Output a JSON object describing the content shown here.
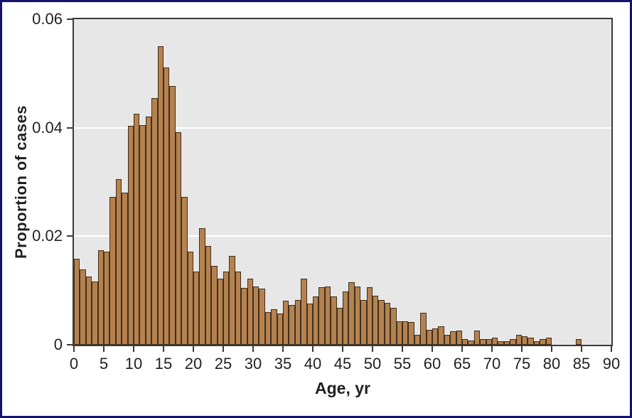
{
  "figure": {
    "page_border_color": "#14126b",
    "page_background": "#ffffff"
  },
  "chart_data": {
    "type": "bar",
    "subtype": "histogram",
    "title": "",
    "xlabel": "Age, yr",
    "ylabel": "Proportion of cases",
    "xlim": [
      0,
      90
    ],
    "ylim": [
      0,
      0.06
    ],
    "bin_width_years": 1,
    "x_ticks": [
      0,
      5,
      10,
      15,
      20,
      25,
      30,
      35,
      40,
      45,
      50,
      55,
      60,
      65,
      70,
      75,
      80,
      85,
      90
    ],
    "y_ticks": {
      "values": [
        0,
        0.02,
        0.04,
        0.06
      ],
      "labels": [
        "0",
        "0.02",
        "0.04",
        "0.06"
      ]
    },
    "grid": {
      "horizontal": true,
      "values": [
        0.02,
        0.04
      ],
      "color": "#ffffff",
      "legend_position": "none"
    },
    "x_bin_start": [
      0,
      1,
      2,
      3,
      4,
      5,
      6,
      7,
      8,
      9,
      10,
      11,
      12,
      13,
      14,
      15,
      16,
      17,
      18,
      19,
      20,
      21,
      22,
      23,
      24,
      25,
      26,
      27,
      28,
      29,
      30,
      31,
      32,
      33,
      34,
      35,
      36,
      37,
      38,
      39,
      40,
      41,
      42,
      43,
      44,
      45,
      46,
      47,
      48,
      49,
      50,
      51,
      52,
      53,
      54,
      55,
      56,
      57,
      58,
      59,
      60,
      61,
      62,
      63,
      64,
      65,
      66,
      67,
      68,
      69,
      70,
      71,
      72,
      73,
      74,
      75,
      76,
      77,
      78,
      79,
      80,
      81,
      82,
      83,
      84,
      85,
      86,
      87,
      88,
      89
    ],
    "values": [
      0.0158,
      0.0139,
      0.0126,
      0.0116,
      0.0174,
      0.0171,
      0.0272,
      0.0305,
      0.028,
      0.0404,
      0.0426,
      0.0405,
      0.0421,
      0.0455,
      0.055,
      0.0511,
      0.0477,
      0.0392,
      0.0273,
      0.0172,
      0.0135,
      0.0215,
      0.0182,
      0.0145,
      0.0122,
      0.0135,
      0.0164,
      0.0135,
      0.0105,
      0.0122,
      0.0107,
      0.0104,
      0.006,
      0.0066,
      0.0058,
      0.0081,
      0.0073,
      0.0082,
      0.0122,
      0.0076,
      0.0089,
      0.0106,
      0.0108,
      0.0089,
      0.0068,
      0.0098,
      0.0115,
      0.0108,
      0.0082,
      0.0106,
      0.009,
      0.0082,
      0.0077,
      0.0068,
      0.0043,
      0.0043,
      0.0042,
      0.0019,
      0.0059,
      0.0027,
      0.003,
      0.0034,
      0.0018,
      0.0025,
      0.0026,
      0.0011,
      0.0008,
      0.0026,
      0.0011,
      0.0011,
      0.0013,
      0.0006,
      0.0007,
      0.001,
      0.0019,
      0.0016,
      0.0013,
      0.0007,
      0.0011,
      0.0013,
      0,
      0,
      0,
      0,
      0.0011,
      0,
      0,
      0,
      0,
      0
    ],
    "colors": {
      "bar_fill": "#b5824f",
      "bar_edge": "#3f2f1d",
      "plot_background": "#e8e7e7",
      "axis": "#3b3b3b",
      "text": "#231f20",
      "gridline": "#ffffff"
    }
  }
}
